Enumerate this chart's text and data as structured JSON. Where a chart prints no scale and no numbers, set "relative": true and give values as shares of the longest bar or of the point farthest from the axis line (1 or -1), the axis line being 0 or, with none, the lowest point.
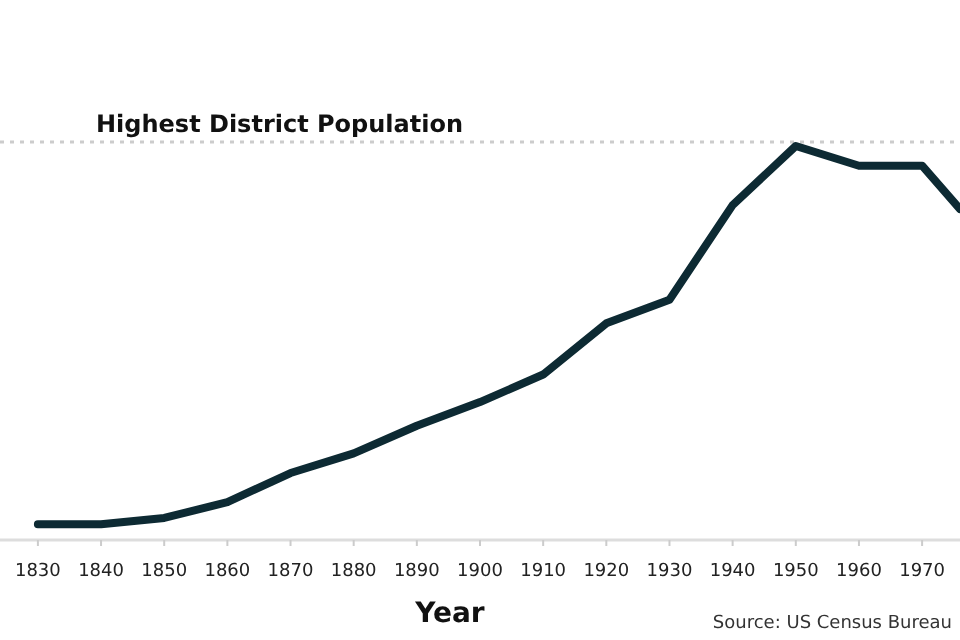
{
  "chart_data": {
    "type": "line",
    "relative": true,
    "xlabel": "Year",
    "x": [
      1830,
      1840,
      1850,
      1860,
      1870,
      1880,
      1890,
      1900,
      1910,
      1920,
      1930,
      1940,
      1950,
      1960,
      1970,
      1976
    ],
    "xlim": [
      1824,
      1976
    ],
    "xticks": [
      1830,
      1840,
      1850,
      1860,
      1870,
      1880,
      1890,
      1900,
      1910,
      1920,
      1930,
      1940,
      1950,
      1960,
      1970
    ],
    "series": [
      {
        "color": "#0d2a33",
        "values": [
          0.04,
          0.04,
          0.056,
          0.096,
          0.17,
          0.22,
          0.29,
          0.35,
          0.42,
          0.55,
          0.61,
          0.85,
          1,
          0.95,
          0.95,
          0.84
        ]
      }
    ],
    "ref_lines": [
      {
        "axis": "y",
        "value": 1.01,
        "label": "Highest District Population",
        "color": "#cccccc",
        "line_style": "dotted"
      }
    ],
    "annotations": [
      "Source: US Census Bureau"
    ],
    "grid": false,
    "marker": "none",
    "line_style": "solid"
  }
}
